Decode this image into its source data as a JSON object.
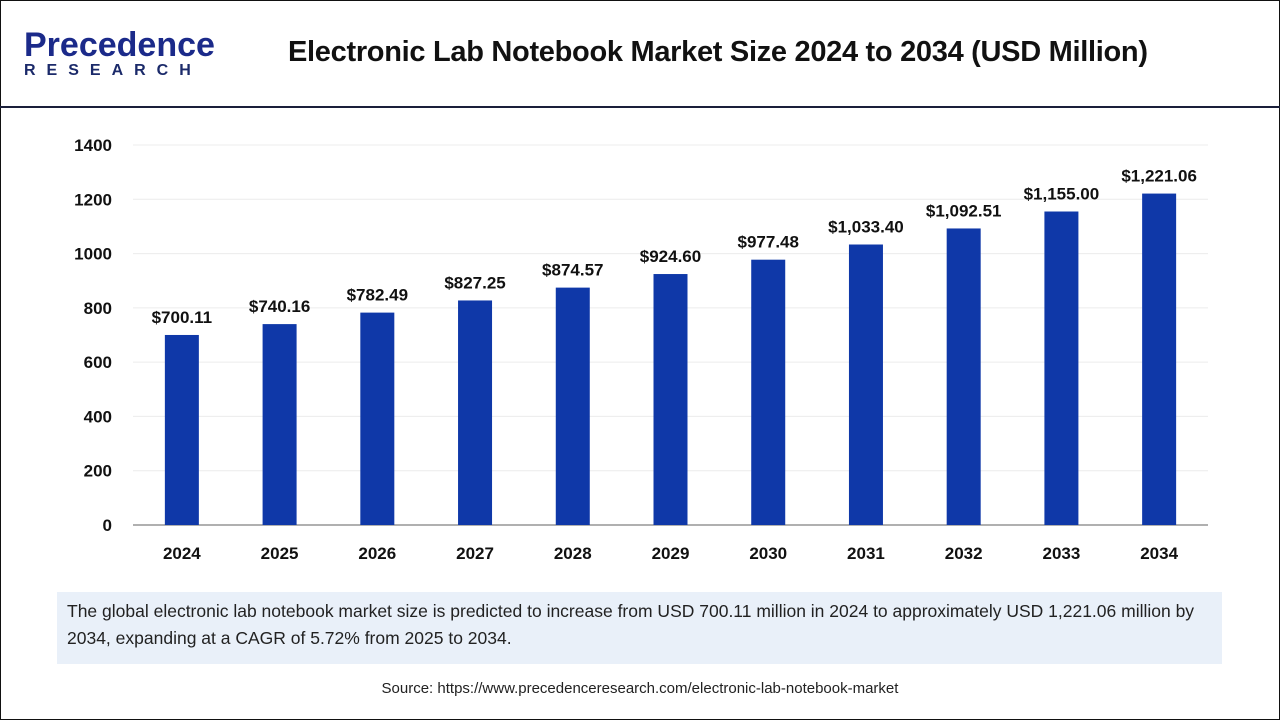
{
  "logo": {
    "line1": "Precedence",
    "line2": "RESEARCH"
  },
  "header": {
    "title": "Electronic Lab Notebook Market Size 2024 to 2034 (USD Million)"
  },
  "chart_data": {
    "type": "bar",
    "title": "Electronic Lab Notebook Market Size 2024 to 2034 (USD Million)",
    "categories": [
      "2024",
      "2025",
      "2026",
      "2027",
      "2028",
      "2029",
      "2030",
      "2031",
      "2032",
      "2033",
      "2034"
    ],
    "values": [
      700.11,
      740.16,
      782.49,
      827.25,
      874.57,
      924.6,
      977.48,
      1033.4,
      1092.51,
      1155.0,
      1221.06
    ],
    "data_labels": [
      "$700.11",
      "$740.16",
      "$782.49",
      "$827.25",
      "$874.57",
      "$924.60",
      "$977.48",
      "$1,033.40",
      "$1,092.51",
      "$1,155.00",
      "$1,221.06"
    ],
    "yticks": [
      "0",
      "200",
      "400",
      "600",
      "800",
      "1000",
      "1200",
      "1400"
    ],
    "ylim": [
      0,
      1400
    ],
    "xlabel": "",
    "ylabel": "",
    "grid": true,
    "bar_color": "#0f38a8"
  },
  "description": "The global electronic lab notebook market size is predicted to increase from USD 700.11 million in 2024 to approximately USD 1,221.06 million by 2034, expanding at a CAGR of 5.72% from 2025 to 2034.",
  "source": "Source: https://www.precedenceresearch.com/electronic-lab-notebook-market"
}
